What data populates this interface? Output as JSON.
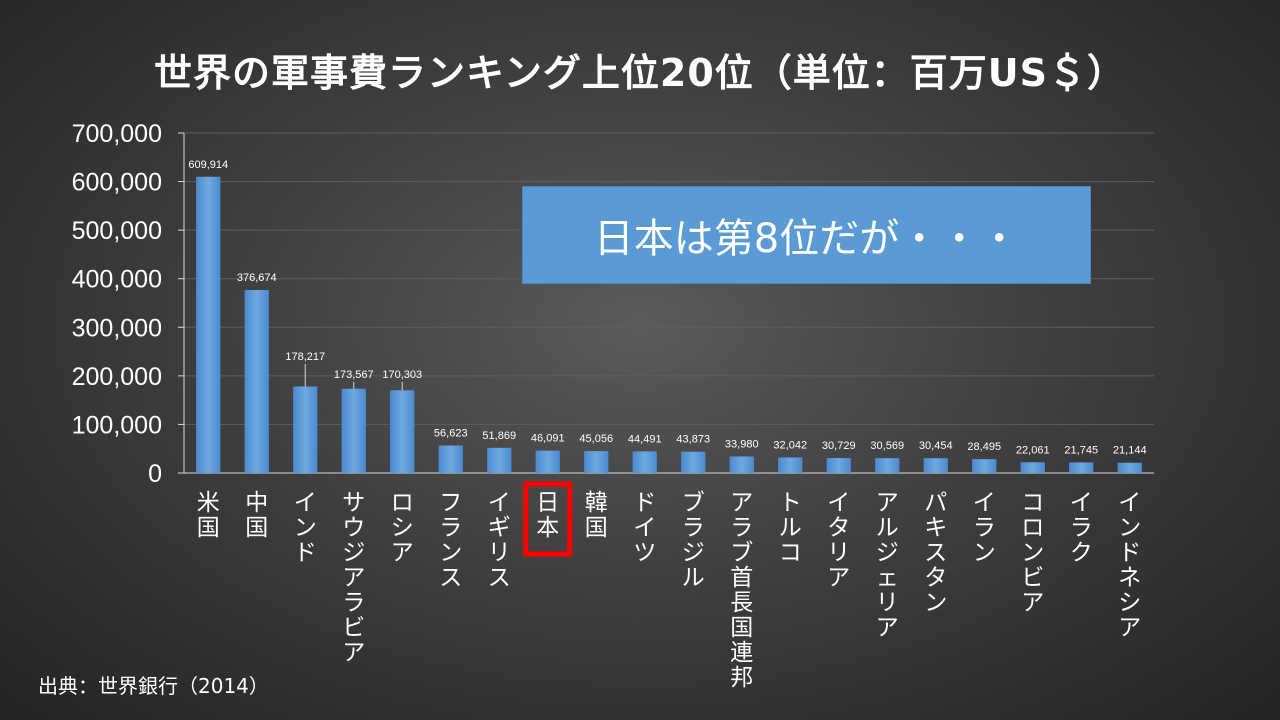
{
  "title": "世界の軍事費ランキング上位20位（単位：百万US＄）",
  "callout": "日本は第8位だが・・・",
  "source": "出典：世界銀行（2014）",
  "colors": {
    "bar": "#5b9bd5",
    "highlight": "#ff0000",
    "grid": "#5e5e5e",
    "axis": "#d9d9d9"
  },
  "chart_data": {
    "type": "bar",
    "title": "世界の軍事費ランキング上位20位（単位：百万US＄）",
    "categories": [
      "米国",
      "中国",
      "インド",
      "サウジアラビア",
      "ロシア",
      "フランス",
      "イギリス",
      "日本",
      "韓国",
      "ドイツ",
      "ブラジル",
      "アラブ首長国連邦",
      "トルコ",
      "イタリア",
      "アルジェリア",
      "パキスタン",
      "イラン",
      "コロンビア",
      "イラク",
      "インドネシア"
    ],
    "values": [
      609914,
      376674,
      178217,
      173567,
      170303,
      56623,
      51869,
      46091,
      45056,
      44491,
      43873,
      33980,
      32042,
      30729,
      30569,
      30454,
      28495,
      22061,
      21745,
      21144
    ],
    "data_labels": [
      "609,914",
      "376,674",
      "178,217",
      "173,567",
      "170,303",
      "56,623",
      "51,869",
      "46,091",
      "45,056",
      "44,491",
      "43,873",
      "33,980",
      "32,042",
      "30,729",
      "30,569",
      "30,454",
      "28,495",
      "22,061",
      "21,745",
      "21,144"
    ],
    "ylim": [
      0,
      700000
    ],
    "yticks": [
      "0",
      "100,000",
      "200,000",
      "300,000",
      "400,000",
      "500,000",
      "600,000",
      "700,000"
    ],
    "grid": true,
    "highlight_category": "日本"
  }
}
